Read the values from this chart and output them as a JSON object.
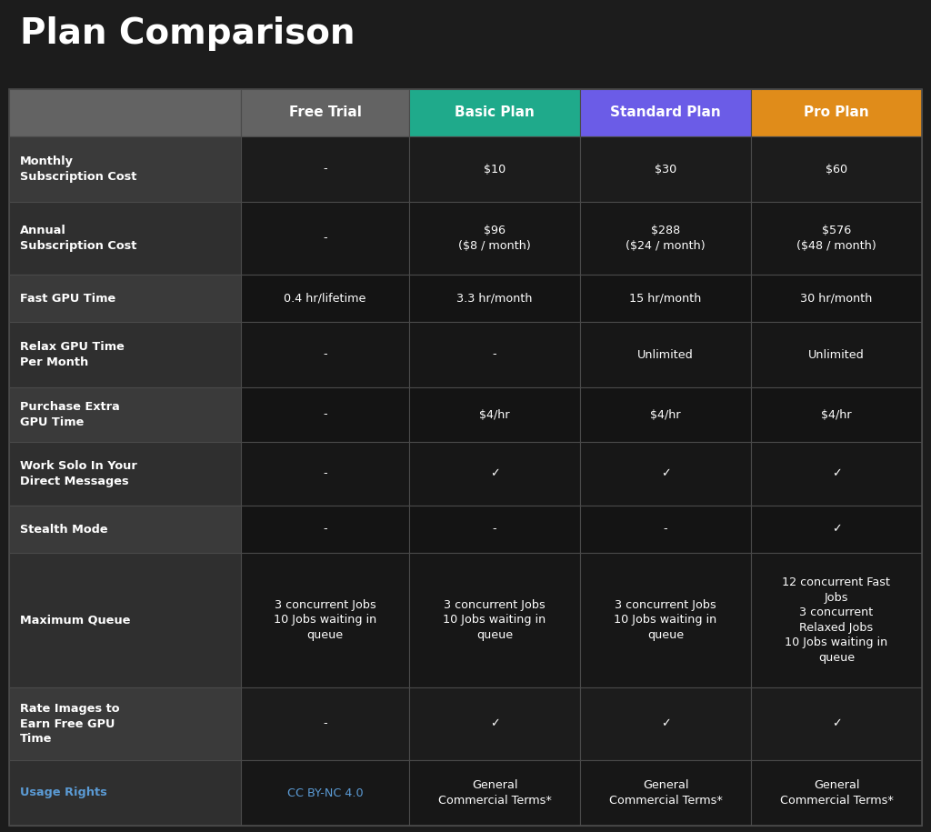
{
  "title": "Plan Comparison",
  "title_color": "#ffffff",
  "title_fontsize": 28,
  "bg_color": "#1c1c1c",
  "header_row_color": "#636363",
  "col_colors": [
    "#636363",
    "#1faa8b",
    "#6b5ce7",
    "#e08c1a"
  ],
  "col_labels": [
    "Free Trial",
    "Basic Plan",
    "Standard Plan",
    "Pro Plan"
  ],
  "cell_text_color": "#ffffff",
  "grid_color": "#4a4a4a",
  "link_color": "#5b9bd5",
  "row_label_bg_dark": "#3a3a3a",
  "row_label_bg_light": "#2f2f2f",
  "data_bg_dark": "#141414",
  "data_bg_light": "#1c1c1c",
  "rows": [
    {
      "label": "Monthly\nSubscription Cost",
      "values": [
        "-",
        "$10",
        "$30",
        "$60"
      ],
      "alt": false
    },
    {
      "label": "Annual\nSubscription Cost",
      "values": [
        "-",
        "$96\n($8 / month)",
        "$288\n($24 / month)",
        "$576\n($48 / month)"
      ],
      "alt": false
    },
    {
      "label": "Fast GPU Time",
      "values": [
        "0.4 hr/lifetime",
        "3.3 hr/month",
        "15 hr/month",
        "30 hr/month"
      ],
      "alt": true
    },
    {
      "label": "Relax GPU Time\nPer Month",
      "values": [
        "-",
        "-",
        "Unlimited",
        "Unlimited"
      ],
      "alt": false
    },
    {
      "label": "Purchase Extra\nGPU Time",
      "values": [
        "-",
        "$4/hr",
        "$4/hr",
        "$4/hr"
      ],
      "alt": true
    },
    {
      "label": "Work Solo In Your\nDirect Messages",
      "values": [
        "-",
        "✓",
        "✓",
        "✓"
      ],
      "alt": false
    },
    {
      "label": "Stealth Mode",
      "values": [
        "-",
        "-",
        "-",
        "✓"
      ],
      "alt": true
    },
    {
      "label": "Maximum Queue",
      "values": [
        "3 concurrent Jobs\n10 Jobs waiting in\nqueue",
        "3 concurrent Jobs\n10 Jobs waiting in\nqueue",
        "3 concurrent Jobs\n10 Jobs waiting in\nqueue",
        "12 concurrent Fast\nJobs\n3 concurrent\nRelaxed Jobs\n10 Jobs waiting in\nqueue"
      ],
      "alt": false
    },
    {
      "label": "Rate Images to\nEarn Free GPU\nTime",
      "values": [
        "-",
        "✓",
        "✓",
        "✓"
      ],
      "alt": false
    },
    {
      "label": "Usage Rights",
      "values": [
        "CC BY-NC 4.0",
        "General\nCommercial Terms*",
        "General\nCommercial Terms*",
        "General\nCommercial Terms*"
      ],
      "alt": false,
      "label_link": true,
      "value_link": [
        true,
        false,
        false,
        false
      ]
    }
  ]
}
